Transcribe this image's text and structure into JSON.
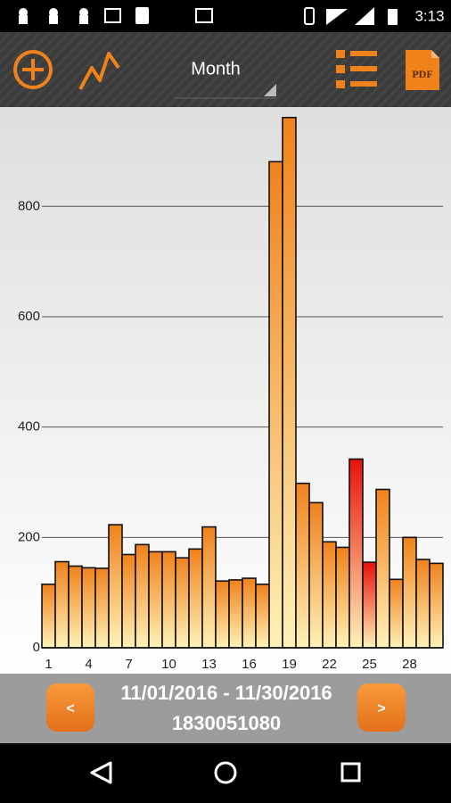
{
  "status_bar": {
    "time": "3:13"
  },
  "toolbar": {
    "period": "Month",
    "pdf": "PDF"
  },
  "chart_data": {
    "type": "bar",
    "categories": [
      1,
      null,
      null,
      4,
      null,
      null,
      7,
      null,
      null,
      10,
      null,
      null,
      13,
      null,
      null,
      16,
      null,
      null,
      19,
      null,
      null,
      22,
      null,
      null,
      25,
      null,
      null,
      28,
      null,
      null
    ],
    "values": [
      115,
      156,
      148,
      145,
      144,
      223,
      169,
      187,
      174,
      174,
      163,
      179,
      219,
      121,
      123,
      126,
      115,
      881,
      961,
      298,
      263,
      192,
      182,
      342,
      155,
      287,
      124,
      200,
      160,
      153
    ],
    "colors": [
      "#f0821c",
      "#f0821c",
      "#f0821c",
      "#f0821c",
      "#f0821c",
      "#f0821c",
      "#f0821c",
      "#f0821c",
      "#f0821c",
      "#f0821c",
      "#f0821c",
      "#f0821c",
      "#f0821c",
      "#f0821c",
      "#f0821c",
      "#f0821c",
      "#f0821c",
      "#f0821c",
      "#f0821c",
      "#f0821c",
      "#f0821c",
      "#f0821c",
      "#f0821c",
      "#e8120c",
      "#e8120c",
      "#f0821c",
      "#f0821c",
      "#f0821c",
      "#f0821c",
      "#f0821c"
    ],
    "ylim": [
      0,
      980
    ],
    "yticks": [
      0,
      200,
      400,
      600,
      800
    ],
    "grid": true
  },
  "footer": {
    "prev": "<",
    "next": ">",
    "date_range": "11/01/2016 - 11/30/2016",
    "id": "1830051080"
  }
}
